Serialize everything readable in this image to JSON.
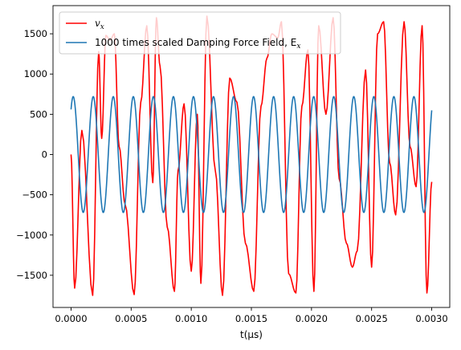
{
  "chart_data": {
    "type": "line",
    "title": "",
    "xlabel": "t(μs)",
    "ylabel": "",
    "xlim": [
      -0.00015,
      0.00315
    ],
    "ylim": [
      -1900,
      1850
    ],
    "xticks": [
      0.0,
      0.0005,
      0.001,
      0.0015,
      0.002,
      0.0025,
      0.003
    ],
    "xtick_labels": [
      "0.0000",
      "0.0005",
      "0.0010",
      "0.0015",
      "0.0020",
      "0.0025",
      "0.0030"
    ],
    "yticks": [
      -1500,
      -1000,
      -500,
      0,
      500,
      1000,
      1500
    ],
    "ytick_labels": [
      "−1500",
      "−1000",
      "−500",
      "0",
      "500",
      "1000",
      "1500"
    ],
    "grid": false,
    "legend_position": "top-left",
    "series": [
      {
        "name": "v_x",
        "legend_main": "v",
        "legend_sub": "x",
        "color": "#ff0000",
        "x": [
          0.0,
          3e-05,
          9e-05,
          0.00018,
          0.00023,
          0.000255,
          0.00029,
          0.000325,
          0.00036,
          0.0004,
          0.00045,
          0.000525,
          0.00058,
          0.00063,
          0.00068,
          0.00071,
          0.00074,
          0.0008,
          0.00086,
          0.00089,
          0.00094,
          0.001,
          0.00105,
          0.00108,
          0.00113,
          0.0012,
          0.00126,
          0.00132,
          0.00138,
          0.00145,
          0.00152,
          0.00158,
          0.00163,
          0.00167,
          0.00172,
          0.00175,
          0.00181,
          0.00187,
          0.00192,
          0.00197,
          0.00202,
          0.00206,
          0.00212,
          0.00218,
          0.00223,
          0.00229,
          0.00234,
          0.00238,
          0.00245,
          0.0025,
          0.00255,
          0.0026,
          0.00265,
          0.0027,
          0.00277,
          0.00282,
          0.00287,
          0.00292,
          0.00296,
          0.003
        ],
        "values": [
          0,
          -1660,
          300,
          -1750,
          1280,
          200,
          1480,
          1420,
          1500,
          100,
          -620,
          -1740,
          650,
          1600,
          -350,
          1700,
          1100,
          -900,
          -1700,
          -200,
          630,
          -1450,
          500,
          -1600,
          1720,
          -200,
          -1750,
          950,
          650,
          -1100,
          -1700,
          600,
          1200,
          1500,
          1450,
          1650,
          -1480,
          -1720,
          600,
          1300,
          -1700,
          1600,
          500,
          1700,
          -300,
          -1100,
          -1400,
          -1200,
          1050,
          -1400,
          1500,
          1650,
          -100,
          -750,
          1650,
          100,
          -400,
          1600,
          -1720,
          -340
        ]
      },
      {
        "name": "1000 times scaled Damping Force Field, E_x",
        "legend_main": "1000 times scaled Damping Force Field, E",
        "legend_sub": "x",
        "color": "#1f77b4",
        "amplitude": 720,
        "period": 0.0001667,
        "phase_start_value": 560,
        "x_start": 0.0,
        "x_end": 0.003
      }
    ]
  }
}
